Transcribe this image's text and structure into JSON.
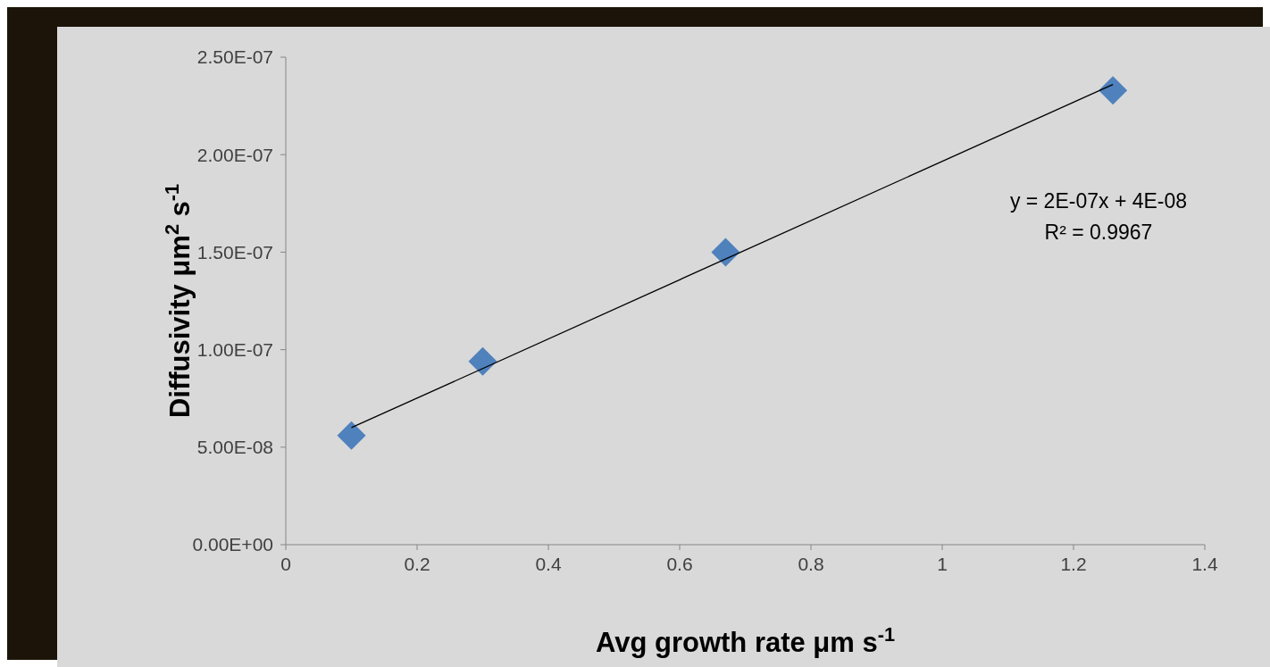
{
  "chart_data": {
    "type": "scatter",
    "xlabel": "Avg growth rate μm s$^{-1}$",
    "ylabel": "Diffusivity μm$^{2}$ s$^{-1}$",
    "series": [
      {
        "color": "#4f81bd",
        "marker": "diamond",
        "x": [
          0.1,
          0.3,
          0.67,
          1.26
        ],
        "values": [
          5.6e-08,
          9.4e-08,
          1.5e-07,
          2.33e-07
        ]
      },
      {
        "type": "line",
        "color": "#000000",
        "marker": "none",
        "x": [
          0.1,
          1.26
        ],
        "values": [
          6e-08,
          2.36e-07
        ]
      }
    ],
    "xlim": [
      0,
      1.4
    ],
    "xticks": [
      0,
      0.2,
      0.4,
      0.6,
      0.8,
      1,
      1.2,
      1.4
    ],
    "ylim": [
      0,
      2.5e-07
    ],
    "yticks": [
      {
        "value": 0,
        "label": "0.00E+00"
      },
      {
        "value": 5e-08,
        "label": "5.00E-08"
      },
      {
        "value": 1e-07,
        "label": "1.00E-07"
      },
      {
        "value": 1.5e-07,
        "label": "1.50E-07"
      },
      {
        "value": 2e-07,
        "label": "2.00E-07"
      },
      {
        "value": 2.5e-07,
        "label": "2.50E-07"
      }
    ],
    "annotations": [
      "y = 2E-07x + 4E-08",
      "R² = 0.9967"
    ],
    "grid": false,
    "legend": false
  }
}
